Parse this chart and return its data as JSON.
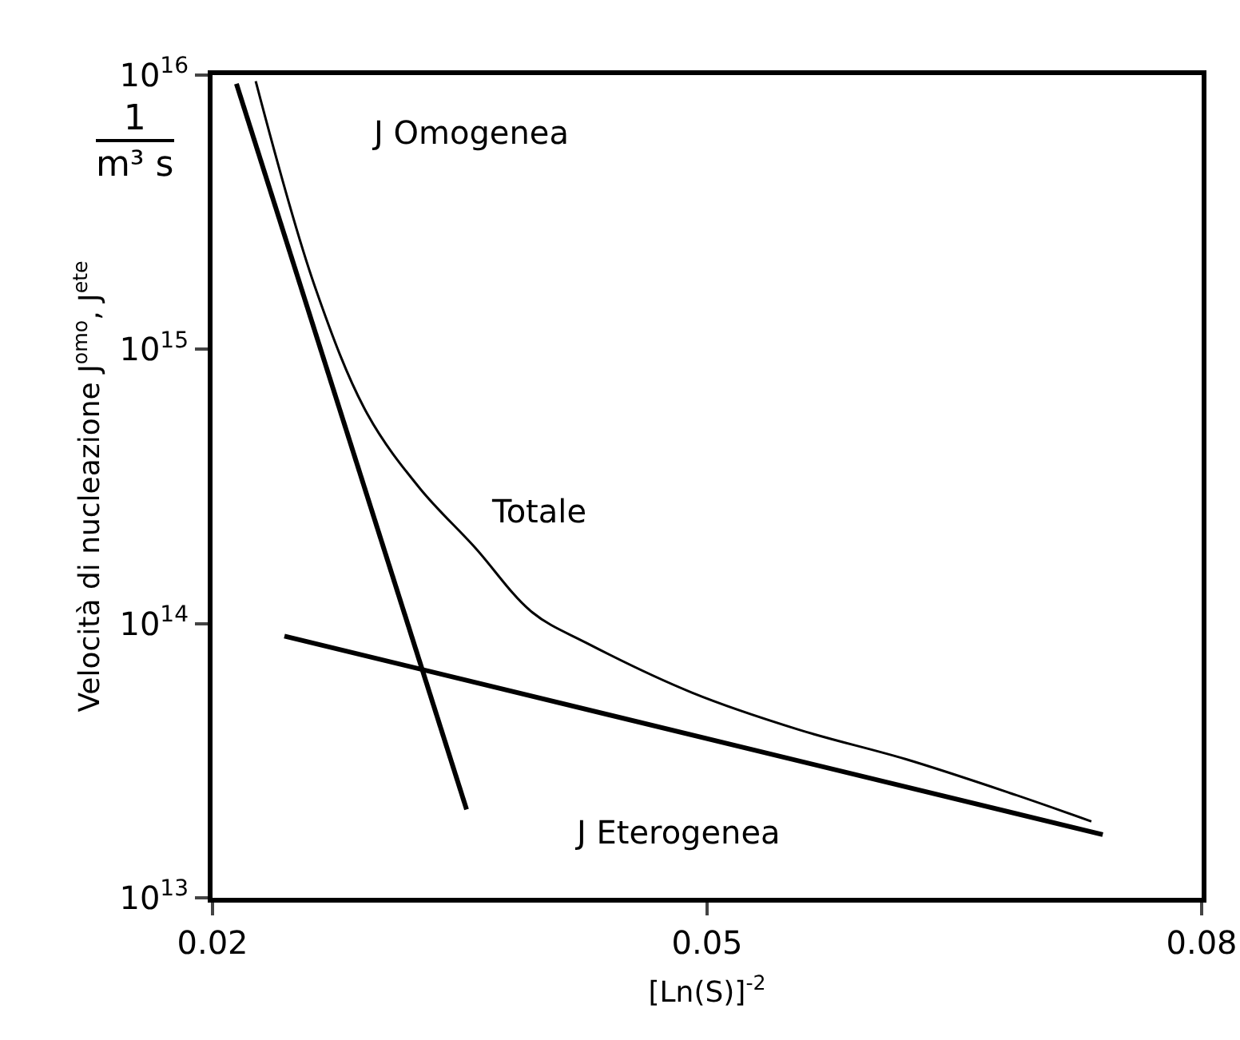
{
  "chart_data": {
    "type": "line",
    "xlabel": "[Ln(S)]$^{-2}$",
    "ylabel": "Velocità di nucleazione J$^{omo}$, J$^{ete}$",
    "series": [
      {
        "color": "#000000",
        "x": [
          0.02145,
          0.03541
        ],
        "values": [
          9300000000000000.0,
          21000000000000.0
        ]
      },
      {
        "color": "#000000",
        "x": [
          0.02436,
          0.074
        ],
        "values": [
          90000000000000.0,
          17000000000000.0
        ]
      },
      {
        "color": "#000000",
        "x": [
          0.02262,
          0.0262,
          0.0294,
          0.0326,
          0.0359,
          0.03939,
          0.04268,
          0.04908,
          0.05558,
          0.06207,
          0.06847,
          0.07331
        ],
        "values": [
          9500000000000000.0,
          1700000000000000.0,
          580000000000000.0,
          310000000000000.0,
          190000000000000.0,
          110000000000000.0,
          85000000000000.0,
          56000000000000.0,
          41000000000000.0,
          32000000000000.0,
          24000000000000.0,
          19000000000000.0
        ]
      }
    ],
    "annotations": [
      "J Omogenea",
      "Totale",
      "J Eterogenea",
      "1",
      "m³ s"
    ],
    "log": "y",
    "xlim": [
      0.02,
      0.08
    ],
    "xticks": [
      0.02,
      0.05,
      0.08
    ],
    "ylim": [
      10000000000000.0,
      1e+16
    ],
    "yticks": [
      {
        "value": 10000000000000.0,
        "label": "10$^{13}$"
      },
      {
        "value": 100000000000000.0,
        "label": "10$^{14}$"
      },
      {
        "value": 1000000000000000.0,
        "label": "10$^{15}$"
      },
      {
        "value": 1e+16,
        "label": "10$^{16}$"
      }
    ],
    "grid": false,
    "marker": "none",
    "line_style": "solid"
  }
}
